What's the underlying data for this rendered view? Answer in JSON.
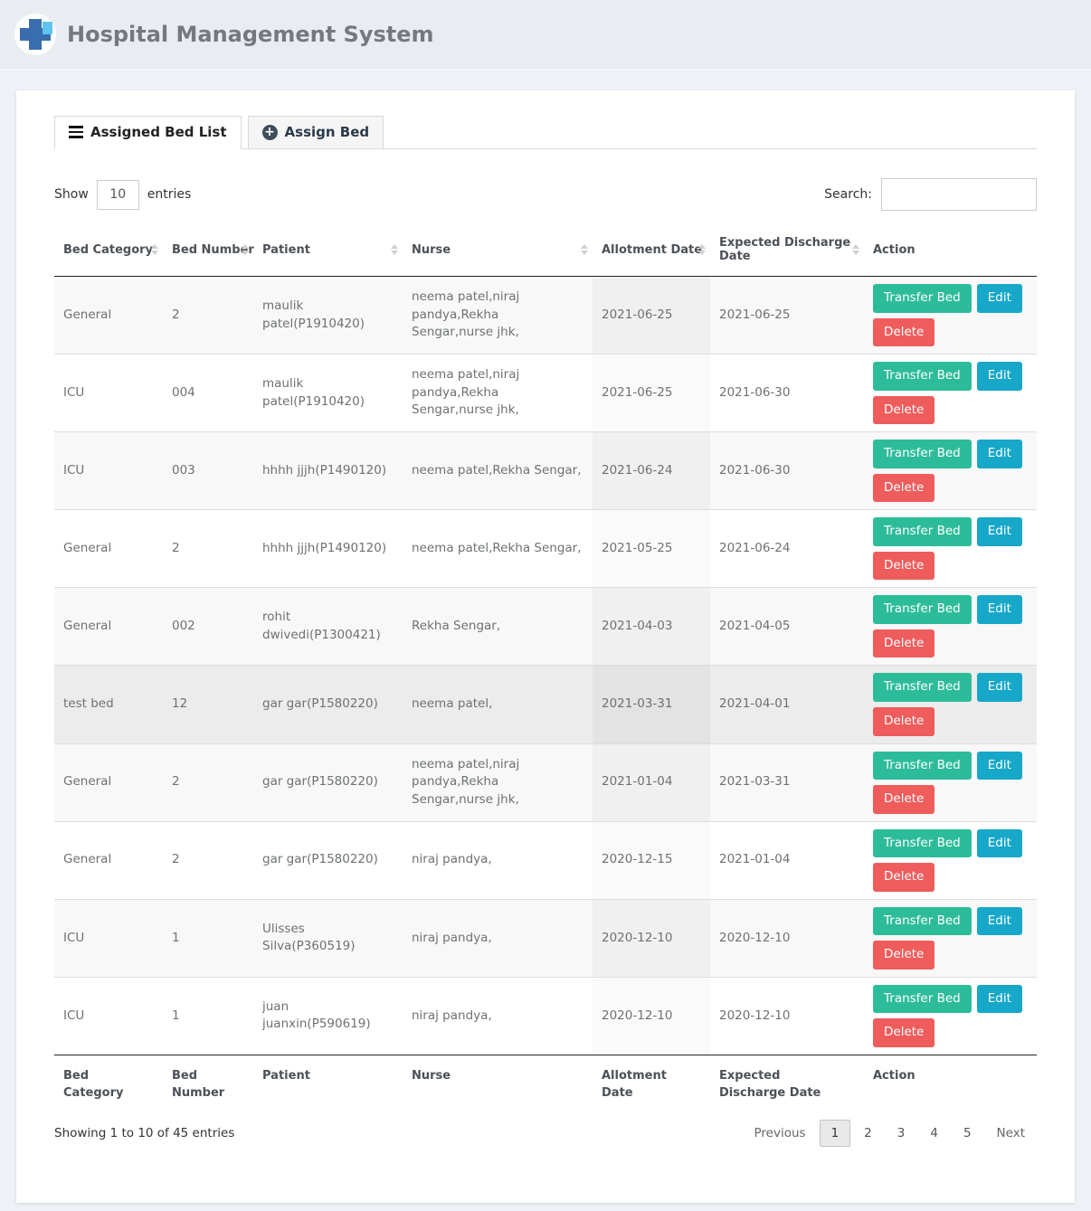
{
  "header": {
    "title": "Hospital Management System"
  },
  "tabs": {
    "assigned_bed_list": "Assigned Bed List",
    "assign_bed": "Assign Bed"
  },
  "controls": {
    "show_label": "Show",
    "entries_value": "10",
    "entries_label": "entries",
    "search_label": "Search:",
    "search_value": ""
  },
  "table": {
    "columns": [
      "Bed Category",
      "Bed Number",
      "Patient",
      "Nurse",
      "Allotment Date",
      "Expected Discharge Date",
      "Action"
    ],
    "actions": {
      "transfer": "Transfer Bed",
      "edit": "Edit",
      "delete": "Delete"
    },
    "rows": [
      {
        "state": "odd",
        "bed_category": "General",
        "bed_number": "2",
        "patient": "maulik patel(P1910420)",
        "nurse": "neema patel,niraj pandya,Rekha Sengar,nurse jhk,",
        "allotment_date": "2021-06-25",
        "expected_discharge_date": "2021-06-25"
      },
      {
        "state": "even",
        "bed_category": "ICU",
        "bed_number": "004",
        "patient": "maulik patel(P1910420)",
        "nurse": "neema patel,niraj pandya,Rekha Sengar,nurse jhk,",
        "allotment_date": "2021-06-25",
        "expected_discharge_date": "2021-06-30"
      },
      {
        "state": "odd",
        "bed_category": "ICU",
        "bed_number": "003",
        "patient": "hhhh jjjh(P1490120)",
        "nurse": "neema patel,Rekha Sengar,",
        "allotment_date": "2021-06-24",
        "expected_discharge_date": "2021-06-30"
      },
      {
        "state": "even",
        "bed_category": "General",
        "bed_number": "2",
        "patient": "hhhh jjjh(P1490120)",
        "nurse": "neema patel,Rekha Sengar,",
        "allotment_date": "2021-05-25",
        "expected_discharge_date": "2021-06-24"
      },
      {
        "state": "odd",
        "bed_category": "General",
        "bed_number": "002",
        "patient": "rohit dwivedi(P1300421)",
        "nurse": "Rekha Sengar,",
        "allotment_date": "2021-04-03",
        "expected_discharge_date": "2021-04-05"
      },
      {
        "state": "hover",
        "bed_category": "test bed",
        "bed_number": "12",
        "patient": "gar gar(P1580220)",
        "nurse": "neema patel,",
        "allotment_date": "2021-03-31",
        "expected_discharge_date": "2021-04-01"
      },
      {
        "state": "odd",
        "bed_category": "General",
        "bed_number": "2",
        "patient": "gar gar(P1580220)",
        "nurse": "neema patel,niraj pandya,Rekha Sengar,nurse jhk,",
        "allotment_date": "2021-01-04",
        "expected_discharge_date": "2021-03-31"
      },
      {
        "state": "even",
        "bed_category": "General",
        "bed_number": "2",
        "patient": "gar gar(P1580220)",
        "nurse": "niraj pandya,",
        "allotment_date": "2020-12-15",
        "expected_discharge_date": "2021-01-04"
      },
      {
        "state": "odd",
        "bed_category": "ICU",
        "bed_number": "1",
        "patient": "Ulisses Silva(P360519)",
        "nurse": "niraj pandya,",
        "allotment_date": "2020-12-10",
        "expected_discharge_date": "2020-12-10"
      },
      {
        "state": "even",
        "bed_category": "ICU",
        "bed_number": "1",
        "patient": "juan juanxin(P590619)",
        "nurse": "niraj pandya,",
        "allotment_date": "2020-12-10",
        "expected_discharge_date": "2020-12-10"
      }
    ]
  },
  "footer": {
    "showing_text": "Showing 1 to 10 of 45 entries",
    "pagination": {
      "previous": "Previous",
      "pages": [
        "1",
        "2",
        "3",
        "4",
        "5"
      ],
      "active_page": "1",
      "next": "Next"
    }
  },
  "colors": {
    "transfer_button": "#2dbc99",
    "edit_button": "#17a7c9",
    "delete_button": "#ef5c5c",
    "logo_blue": "#3a6daf",
    "logo_light_blue": "#5fc3ef",
    "header_band": "#e9edf2"
  }
}
